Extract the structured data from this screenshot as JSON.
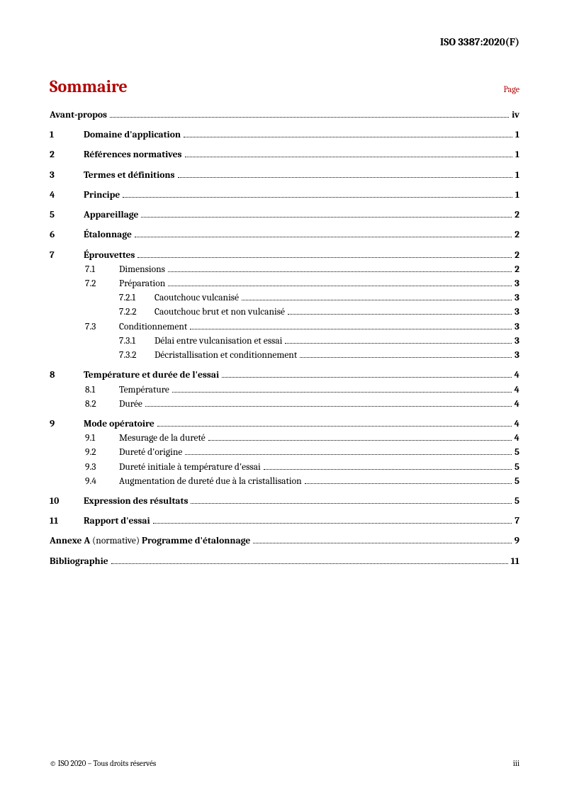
{
  "header": {
    "doc_id": "ISO 3387:2020(F)"
  },
  "title": "Sommaire",
  "page_label": "Page",
  "toc": [
    {
      "type": "top",
      "num": "",
      "title": "Avant-propos",
      "page": "iv",
      "bold": true,
      "spaced": true,
      "name": "toc-avant-propos"
    },
    {
      "type": "top",
      "num": "1",
      "title": "Domaine d'application",
      "page": "1",
      "bold": true,
      "spaced": true,
      "name": "toc-1"
    },
    {
      "type": "top",
      "num": "2",
      "title": "Références normatives",
      "page": "1",
      "bold": true,
      "spaced": true,
      "name": "toc-2"
    },
    {
      "type": "top",
      "num": "3",
      "title": "Termes et définitions",
      "page": "1",
      "bold": true,
      "spaced": true,
      "name": "toc-3"
    },
    {
      "type": "top",
      "num": "4",
      "title": "Principe",
      "page": "1",
      "bold": true,
      "spaced": true,
      "name": "toc-4"
    },
    {
      "type": "top",
      "num": "5",
      "title": "Appareillage",
      "page": "2",
      "bold": true,
      "spaced": true,
      "name": "toc-5"
    },
    {
      "type": "top",
      "num": "6",
      "title": "Étalonnage",
      "page": "2",
      "bold": true,
      "spaced": true,
      "name": "toc-6"
    },
    {
      "type": "top",
      "num": "7",
      "title": "Éprouvettes",
      "page": "2",
      "bold": true,
      "spaced": true,
      "name": "toc-7"
    },
    {
      "type": "sub",
      "num": "7.1",
      "title": "Dimensions",
      "page": "2",
      "name": "toc-7-1"
    },
    {
      "type": "sub",
      "num": "7.2",
      "title": "Préparation",
      "page": "3",
      "name": "toc-7-2"
    },
    {
      "type": "ssub",
      "num": "7.2.1",
      "title": "Caoutchouc vulcanisé",
      "page": "3",
      "name": "toc-7-2-1"
    },
    {
      "type": "ssub",
      "num": "7.2.2",
      "title": "Caoutchouc brut et non vulcanisé",
      "page": "3",
      "name": "toc-7-2-2"
    },
    {
      "type": "sub",
      "num": "7.3",
      "title": "Conditionnement",
      "page": "3",
      "name": "toc-7-3"
    },
    {
      "type": "ssub",
      "num": "7.3.1",
      "title": "Délai entre vulcanisation et essai",
      "page": "3",
      "name": "toc-7-3-1"
    },
    {
      "type": "ssub",
      "num": "7.3.2",
      "title": "Décristallisation et conditionnement",
      "page": "3",
      "name": "toc-7-3-2"
    },
    {
      "type": "top",
      "num": "8",
      "title": "Température et durée de l'essai",
      "page": "4",
      "bold": true,
      "spaced": true,
      "name": "toc-8"
    },
    {
      "type": "sub",
      "num": "8.1",
      "title": "Température",
      "page": "4",
      "name": "toc-8-1"
    },
    {
      "type": "sub",
      "num": "8.2",
      "title": "Durée",
      "page": "4",
      "name": "toc-8-2"
    },
    {
      "type": "top",
      "num": "9",
      "title": "Mode opératoire",
      "page": "4",
      "bold": true,
      "spaced": true,
      "name": "toc-9"
    },
    {
      "type": "sub",
      "num": "9.1",
      "title": "Mesurage de la dureté",
      "page": "4",
      "name": "toc-9-1"
    },
    {
      "type": "sub",
      "num": "9.2",
      "title": "Dureté d'origine",
      "page": "5",
      "name": "toc-9-2"
    },
    {
      "type": "sub",
      "num": "9.3",
      "title": "Dureté initiale à température d'essai",
      "page": "5",
      "name": "toc-9-3"
    },
    {
      "type": "sub",
      "num": "9.4",
      "title": "Augmentation de dureté due à la cristallisation",
      "page": "5",
      "name": "toc-9-4"
    },
    {
      "type": "top",
      "num": "10",
      "title": "Expression des résultats",
      "page": "5",
      "bold": true,
      "spaced": true,
      "name": "toc-10"
    },
    {
      "type": "top",
      "num": "11",
      "title": "Rapport d'essai",
      "page": "7",
      "bold": true,
      "spaced": true,
      "name": "toc-11"
    },
    {
      "type": "annex",
      "prefix": "Annexe A",
      "mid": " (normative) ",
      "suffix": "Programme d'étalonnage",
      "page": "9",
      "spaced": true,
      "name": "toc-annexe-a"
    },
    {
      "type": "top",
      "num": "",
      "title": "Bibliographie",
      "page": "11",
      "bold": true,
      "spaced": true,
      "name": "toc-biblio"
    }
  ],
  "footer": {
    "copyright": "© ISO 2020 – Tous droits réservés",
    "pagenum": "iii"
  }
}
